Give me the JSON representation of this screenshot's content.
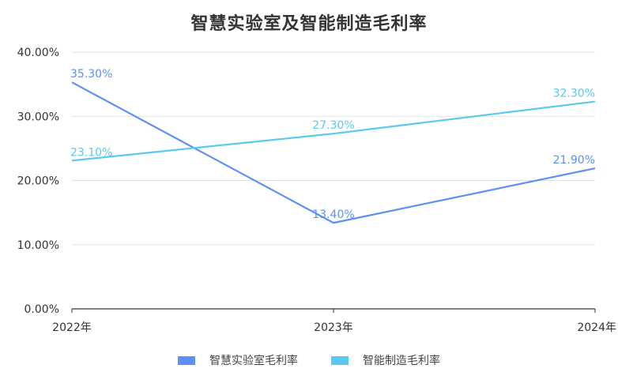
{
  "chart_data": {
    "type": "line",
    "title": "智慧实验室及智能制造毛利率",
    "xlabel": "",
    "ylabel": "",
    "categories": [
      "2022年",
      "2023年",
      "2024年"
    ],
    "ylim": [
      0,
      40
    ],
    "yticks": [
      "0.00%",
      "10.00%",
      "20.00%",
      "30.00%",
      "40.00%"
    ],
    "ytick_values": [
      0,
      10,
      20,
      30,
      40
    ],
    "grid": true,
    "legend_position": "bottom",
    "series": [
      {
        "name": "智慧实验室毛利率",
        "values": [
          35.3,
          13.4,
          21.9
        ],
        "labels": [
          "35.30%",
          "13.40%",
          "21.90%"
        ],
        "color": "#5b8ff9"
      },
      {
        "name": "智能制造毛利率",
        "values": [
          23.1,
          27.3,
          32.3
        ],
        "labels": [
          "23.10%",
          "27.30%",
          "32.30%"
        ],
        "color": "#5ac8f0"
      }
    ]
  }
}
